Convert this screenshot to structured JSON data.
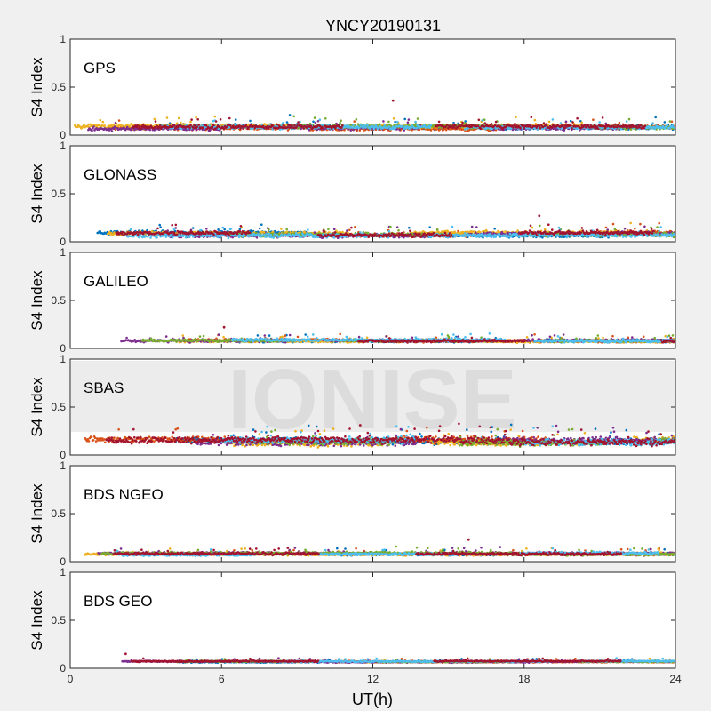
{
  "figure": {
    "title": "YNCY20190131",
    "watermark": "IONISE",
    "xlabel": "UT(h)",
    "xticks": [
      "0",
      "6",
      "12",
      "18",
      "24"
    ]
  },
  "colors": {
    "background": "#f0f0f0",
    "axes_bg": "#ffffff",
    "series": [
      "#0072bd",
      "#d95319",
      "#edb120",
      "#7e2f8e",
      "#77ac30",
      "#4dbeee",
      "#a2142f"
    ]
  },
  "chart_data": [
    {
      "type": "scatter",
      "label": "GPS",
      "ylabel": "S4 Index",
      "xlim": [
        0,
        24
      ],
      "ylim": [
        0,
        1
      ],
      "yticks": [
        "0",
        "0.5",
        "1"
      ],
      "grid": false,
      "baseline_s4": 0.08,
      "spread_s4": 0.03,
      "max_s4": 0.36,
      "max_at_ut": 12.8
    },
    {
      "type": "scatter",
      "label": "GLONASS",
      "ylabel": "S4 Index",
      "xlim": [
        0,
        24
      ],
      "ylim": [
        0,
        1
      ],
      "yticks": [
        "0",
        "0.5",
        "1"
      ],
      "grid": false,
      "baseline_s4": 0.08,
      "spread_s4": 0.03,
      "max_s4": 0.27,
      "max_at_ut": 18.6
    },
    {
      "type": "scatter",
      "label": "GALILEO",
      "ylabel": "S4 Index",
      "xlim": [
        0,
        24
      ],
      "ylim": [
        0,
        1
      ],
      "yticks": [
        "0",
        "0.5",
        "1"
      ],
      "grid": false,
      "baseline_s4": 0.08,
      "spread_s4": 0.02,
      "max_s4": 0.22,
      "max_at_ut": 6.1
    },
    {
      "type": "scatter",
      "label": "SBAS",
      "ylabel": "S4 Index",
      "xlim": [
        0,
        24
      ],
      "ylim": [
        0,
        1
      ],
      "yticks": [
        "0",
        "0.5",
        "1"
      ],
      "grid": false,
      "baseline_s4": 0.14,
      "spread_s4": 0.05,
      "max_s4": 0.31,
      "max_at_ut": 11.5
    },
    {
      "type": "scatter",
      "label": "BDS NGEO",
      "ylabel": "S4 Index",
      "xlim": [
        0,
        24
      ],
      "ylim": [
        0,
        1
      ],
      "yticks": [
        "0",
        "0.5",
        "1"
      ],
      "grid": false,
      "baseline_s4": 0.08,
      "spread_s4": 0.02,
      "max_s4": 0.23,
      "max_at_ut": 15.8
    },
    {
      "type": "scatter",
      "label": "BDS GEO",
      "ylabel": "S4 Index",
      "xlim": [
        0,
        24
      ],
      "ylim": [
        0,
        1
      ],
      "yticks": [
        "0",
        "0.5",
        "1"
      ],
      "grid": false,
      "baseline_s4": 0.07,
      "spread_s4": 0.01,
      "max_s4": 0.15,
      "max_at_ut": 2.2
    }
  ]
}
